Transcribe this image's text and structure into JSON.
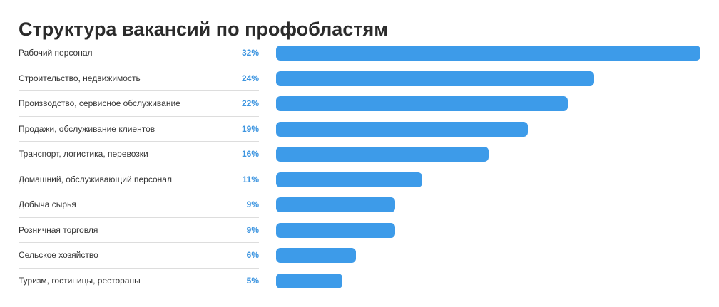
{
  "chart_data": {
    "type": "bar",
    "orientation": "horizontal",
    "title": "Структура вакансий по профобластям",
    "categories": [
      "Рабочий персонал",
      "Строительство, недвижимость",
      "Производство, сервисное обслуживание",
      "Продажи, обслуживание клиентов",
      "Транспорт, логистика, перевозки",
      "Домашний, обслуживающий персонал",
      "Добыча сырья",
      "Розничная торговля",
      "Сельское хозяйство",
      "Туризм, гостиницы, рестораны"
    ],
    "values": [
      32,
      24,
      22,
      19,
      16,
      11,
      9,
      9,
      6,
      5
    ],
    "value_labels": [
      "32%",
      "24%",
      "22%",
      "19%",
      "16%",
      "11%",
      "9%",
      "9%",
      "6%",
      "5%"
    ],
    "xlim": [
      0,
      32
    ],
    "grid": false,
    "legend": "none",
    "colors": {
      "bar": "#3d9be9",
      "value_text": "#3d95e0",
      "label_text": "#333333",
      "title_text": "#2b2b2b"
    }
  }
}
